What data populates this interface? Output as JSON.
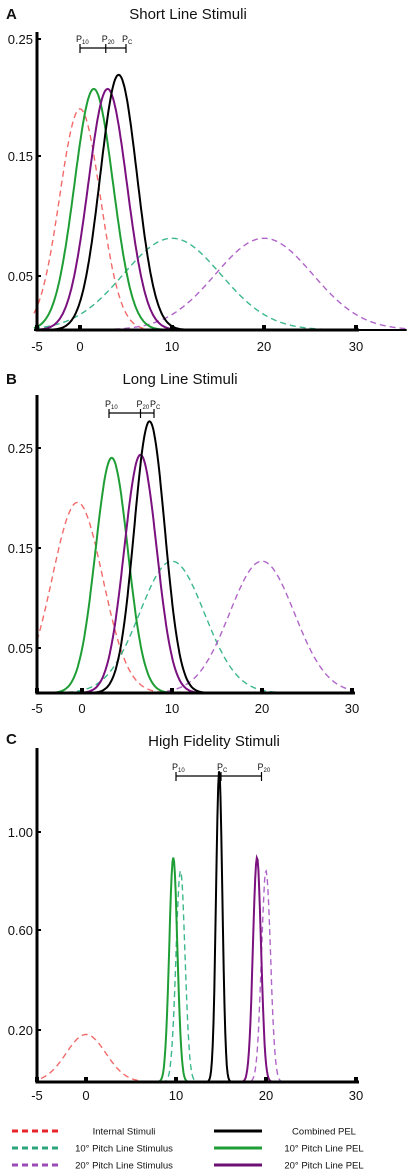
{
  "chart_data": [
    {
      "type": "line",
      "panel_label": "A",
      "title": "Short Line Stimuli",
      "xlabel": "",
      "ylabel": "",
      "xlim": [
        -5,
        35
      ],
      "ylim": [
        0,
        0.25
      ],
      "x_ticks": [
        -5,
        0,
        10,
        20,
        30
      ],
      "y_ticks": [
        0.05,
        0.15,
        0.25
      ],
      "x_tick_labels": [
        "-5",
        "0",
        "10",
        "20",
        "30"
      ],
      "y_tick_labels": [
        "0.05",
        "0.15",
        "0.25"
      ],
      "bracket": {
        "labels": [
          {
            "main": "P",
            "sub": "10",
            "x": 0
          },
          {
            "main": "P",
            "sub": "20",
            "x": 2.8
          },
          {
            "main": "P",
            "sub": "C",
            "x": 5
          }
        ]
      },
      "series": [
        {
          "key": "internal",
          "color": "#f26a6a",
          "dash": true,
          "mean": 0,
          "sd": 2.2,
          "peak": 0.188
        },
        {
          "key": "pitch10_stim",
          "color": "#3cb88a",
          "dash": true,
          "mean": 10,
          "sd": 5.3,
          "peak": 0.078
        },
        {
          "key": "pitch20_stim",
          "color": "#b065c8",
          "dash": true,
          "mean": 20,
          "sd": 5.3,
          "peak": 0.078
        },
        {
          "key": "pitch10_pel",
          "color": "#1f9e36",
          "dash": false,
          "mean": 1.5,
          "sd": 2.1,
          "peak": 0.205
        },
        {
          "key": "pitch20_pel",
          "color": "#7a117e",
          "dash": false,
          "mean": 3,
          "sd": 2.1,
          "peak": 0.205
        },
        {
          "key": "combined",
          "color": "#000000",
          "dash": false,
          "mean": 4.2,
          "sd": 2.0,
          "peak": 0.217
        }
      ]
    },
    {
      "type": "line",
      "panel_label": "B",
      "title": "Long Line Stimuli",
      "xlabel": "",
      "ylabel": "",
      "xlim": [
        -5,
        30
      ],
      "ylim": [
        0,
        0.29
      ],
      "x_ticks": [
        -5,
        0,
        10,
        20,
        30
      ],
      "y_ticks": [
        0.05,
        0.15,
        0.25
      ],
      "x_tick_labels": [
        "-5",
        "0",
        "10",
        "20",
        "30"
      ],
      "y_tick_labels": [
        "0.05",
        "0.15",
        "0.25"
      ],
      "bracket": {
        "labels": [
          {
            "main": "P",
            "sub": "10",
            "x": 3
          },
          {
            "main": "P",
            "sub": "20",
            "x": 6.5
          },
          {
            "main": "P",
            "sub": "C",
            "x": 8
          }
        ]
      },
      "series": [
        {
          "key": "internal",
          "color": "#f26a6a",
          "dash": true,
          "mean": -0.5,
          "sd": 2.8,
          "peak": 0.188
        },
        {
          "key": "pitch10_stim",
          "color": "#3cb88a",
          "dash": true,
          "mean": 10,
          "sd": 3.6,
          "peak": 0.13
        },
        {
          "key": "pitch20_stim",
          "color": "#b065c8",
          "dash": true,
          "mean": 20,
          "sd": 3.6,
          "peak": 0.13
        },
        {
          "key": "pitch10_pel",
          "color": "#1f9e36",
          "dash": false,
          "mean": 3.3,
          "sd": 1.8,
          "peak": 0.232
        },
        {
          "key": "pitch20_pel",
          "color": "#7a117e",
          "dash": false,
          "mean": 6.5,
          "sd": 1.8,
          "peak": 0.235
        },
        {
          "key": "combined",
          "color": "#000000",
          "dash": false,
          "mean": 7.5,
          "sd": 1.7,
          "peak": 0.268
        }
      ]
    },
    {
      "type": "line",
      "panel_label": "C",
      "title": "High Fidelity Stimuli",
      "xlabel": "",
      "ylabel": "",
      "xlim": [
        -5,
        30
      ],
      "ylim": [
        0,
        1.25
      ],
      "x_ticks": [
        -5,
        0,
        10,
        20,
        30
      ],
      "y_ticks": [
        0.2,
        0.6,
        1.0
      ],
      "x_tick_labels": [
        "-5",
        "0",
        "10",
        "20",
        "30"
      ],
      "y_tick_labels": [
        "0.20",
        "0.60",
        "1.00"
      ],
      "bracket": {
        "labels": [
          {
            "main": "P",
            "sub": "10",
            "x": 10
          },
          {
            "main": "P",
            "sub": "C",
            "x": 15
          },
          {
            "main": "P",
            "sub": "20",
            "x": 19.5
          }
        ]
      },
      "series": [
        {
          "key": "internal",
          "color": "#f26a6a",
          "dash": true,
          "mean": 0,
          "sd": 2.2,
          "peak": 0.18
        },
        {
          "key": "pitch10_stim",
          "color": "#3cb88a",
          "dash": true,
          "mean": 10.5,
          "sd": 0.5,
          "peak": 0.8
        },
        {
          "key": "pitch20_stim",
          "color": "#b065c8",
          "dash": true,
          "mean": 20,
          "sd": 0.5,
          "peak": 0.8
        },
        {
          "key": "pitch10_pel",
          "color": "#1f9e36",
          "dash": false,
          "mean": 9.7,
          "sd": 0.45,
          "peak": 0.85
        },
        {
          "key": "pitch20_pel",
          "color": "#7a117e",
          "dash": false,
          "mean": 19,
          "sd": 0.45,
          "peak": 0.85
        },
        {
          "key": "combined",
          "color": "#000000",
          "dash": false,
          "mean": 14.8,
          "sd": 0.35,
          "peak": 1.18
        }
      ]
    }
  ],
  "legend": [
    {
      "key": "internal",
      "label": "Internal Stimuli",
      "color": "#e8232b",
      "dash": true
    },
    {
      "key": "combined",
      "label": "Combined PEL",
      "color": "#000000",
      "dash": false
    },
    {
      "key": "pitch10_stim",
      "label": "10° Pitch Line Stimulus",
      "color": "#2aa57e",
      "dash": true
    },
    {
      "key": "pitch10_pel",
      "label": "10° Pitch Line PEL",
      "color": "#1f9e36",
      "dash": false
    },
    {
      "key": "pitch20_stim",
      "label": "20° Pitch Line Stimulus",
      "color": "#9b4bb5",
      "dash": true
    },
    {
      "key": "pitch20_pel",
      "label": "20° Pitch Line PEL",
      "color": "#6e0f74",
      "dash": false
    }
  ]
}
